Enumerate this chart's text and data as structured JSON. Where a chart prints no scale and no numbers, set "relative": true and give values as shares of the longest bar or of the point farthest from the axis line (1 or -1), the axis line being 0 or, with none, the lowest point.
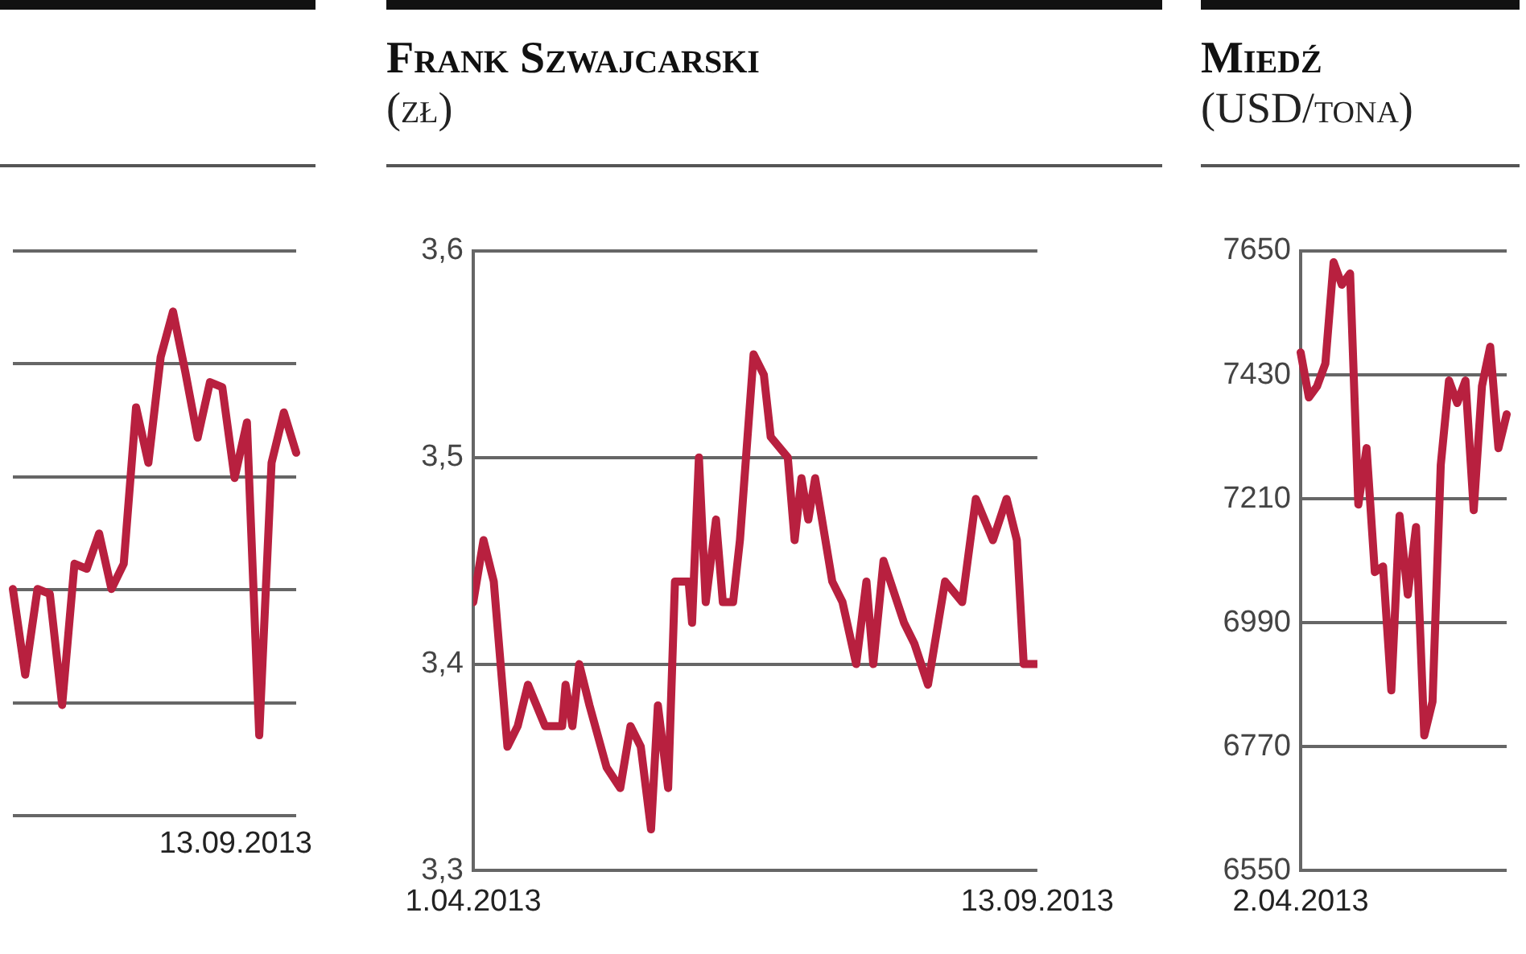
{
  "chart_data": [
    {
      "type": "line",
      "relative": true,
      "color": "#b8203f",
      "grid": "y",
      "categories": [
        null,
        null,
        null,
        null,
        null,
        null,
        null,
        null,
        null,
        null,
        null,
        null,
        null,
        null,
        null,
        null,
        null,
        null,
        null,
        null,
        null,
        null,
        null,
        null
      ],
      "annotations": [
        "13.09.2013"
      ],
      "values": [
        0.45,
        0.28,
        0.45,
        0.44,
        0.22,
        0.5,
        0.49,
        0.56,
        0.45,
        0.5,
        0.81,
        0.7,
        0.91,
        1,
        0.88,
        0.75,
        0.86,
        0.85,
        0.67,
        0.78,
        0.16,
        0.7,
        0.8,
        0.72
      ],
      "legend": false
    },
    {
      "type": "line",
      "title": "Frank Szwajcarski",
      "subtitle": "(zł)",
      "color": "#b8203f",
      "grid": "y",
      "x": [
        "2013-04-01",
        "2013-04-04",
        "2013-04-07",
        "2013-04-11",
        "2013-04-14",
        "2013-04-17",
        "2013-04-22",
        "2013-04-27",
        "2013-04-28",
        "2013-04-30",
        "2013-05-02",
        "2013-05-05",
        "2013-05-10",
        "2013-05-14",
        "2013-05-17",
        "2013-05-20",
        "2013-05-23",
        "2013-05-25",
        "2013-05-28",
        "2013-05-30",
        "2013-06-03",
        "2013-06-04",
        "2013-06-06",
        "2013-06-08",
        "2013-06-11",
        "2013-06-13",
        "2013-06-16",
        "2013-06-18",
        "2013-06-22",
        "2013-06-25",
        "2013-06-27",
        "2013-07-02",
        "2013-07-04",
        "2013-07-06",
        "2013-07-08",
        "2013-07-10",
        "2013-07-15",
        "2013-07-18",
        "2013-07-22",
        "2013-07-25",
        "2013-07-27",
        "2013-07-30",
        "2013-08-05",
        "2013-08-08",
        "2013-08-12",
        "2013-08-17",
        "2013-08-22",
        "2013-08-26",
        "2013-08-31",
        "2013-09-04",
        "2013-09-07",
        "2013-09-09",
        "2013-09-13"
      ],
      "values": [
        3.43,
        3.46,
        3.44,
        3.36,
        3.37,
        3.39,
        3.37,
        3.37,
        3.39,
        3.37,
        3.4,
        3.38,
        3.35,
        3.34,
        3.37,
        3.36,
        3.32,
        3.38,
        3.34,
        3.44,
        3.44,
        3.42,
        3.5,
        3.43,
        3.47,
        3.43,
        3.43,
        3.46,
        3.55,
        3.54,
        3.51,
        3.5,
        3.46,
        3.49,
        3.47,
        3.49,
        3.44,
        3.43,
        3.4,
        3.44,
        3.4,
        3.45,
        3.42,
        3.41,
        3.39,
        3.44,
        3.43,
        3.48,
        3.46,
        3.48,
        3.46,
        3.4,
        3.4
      ],
      "xlim": [
        "2013-04-01",
        "2013-09-13"
      ],
      "xticks": [
        {
          "value": "2013-04-01",
          "label": "1.04.2013"
        },
        {
          "value": "2013-09-13",
          "label": "13.09.2013"
        }
      ],
      "ylim": [
        3.3,
        3.6
      ],
      "yticks": [
        {
          "value": 3.3,
          "label": "3,3"
        },
        {
          "value": 3.4,
          "label": "3,4"
        },
        {
          "value": 3.5,
          "label": "3,5"
        },
        {
          "value": 3.6,
          "label": "3,6"
        }
      ]
    },
    {
      "type": "line",
      "title": "Miedź",
      "subtitle": "(USD/tona)",
      "color": "#b8203f",
      "grid": "y",
      "categories": [
        "2.04.2013",
        null,
        null,
        null,
        null,
        null,
        null,
        null,
        null,
        null,
        null,
        null,
        null,
        null,
        null,
        null,
        null,
        null,
        null,
        null,
        null,
        null,
        null,
        null,
        null,
        null
      ],
      "values": [
        7470,
        7390,
        7410,
        7450,
        7630,
        7590,
        7610,
        7200,
        7300,
        7080,
        7090,
        6870,
        7180,
        7040,
        7160,
        6790,
        6850,
        7270,
        7420,
        7380,
        7420,
        7190,
        7410,
        7480,
        7300,
        7360
      ],
      "ylim": [
        6550,
        7650
      ],
      "yticks": [
        6550,
        6770,
        6990,
        7210,
        7430,
        7650
      ]
    }
  ]
}
